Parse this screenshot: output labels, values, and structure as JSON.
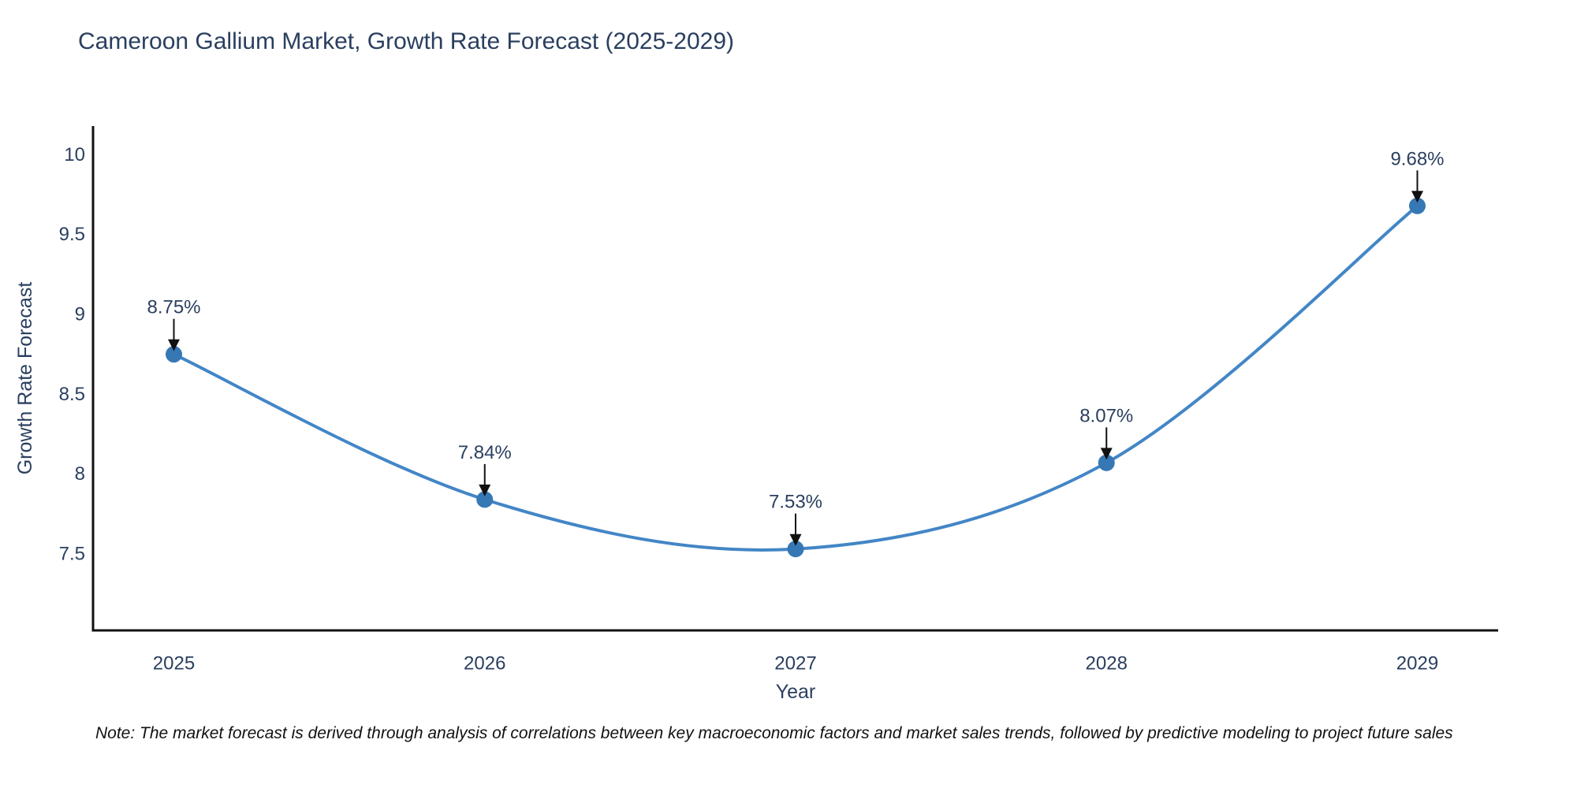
{
  "page": {
    "note": "Note: The market forecast is derived through analysis of correlations between key macroeconomic factors and market sales trends, followed by predictive modeling to project future sales"
  },
  "colors": {
    "background": "#ffffff",
    "title_text": "#2a3f5f",
    "tick_text": "#2a3f5f",
    "axis_line": "#111111",
    "series_line": "#4386c6",
    "marker_fill": "#3678b4",
    "annotation_text": "#2a3f5f",
    "annotation_arrow": "#111111",
    "note_text": "#111111"
  },
  "chart_data": {
    "type": "line",
    "title": "Cameroon Gallium Market, Growth Rate Forecast (2025-2029)",
    "xlabel": "Year",
    "ylabel": "Growth Rate Forecast",
    "x": [
      2025,
      2026,
      2027,
      2028,
      2029
    ],
    "y": [
      8.75,
      7.84,
      7.53,
      8.07,
      9.68
    ],
    "point_labels": [
      "8.75%",
      "7.84%",
      "7.53%",
      "8.07%",
      "9.68%"
    ],
    "xticks": [
      2025,
      2026,
      2027,
      2028,
      2029
    ],
    "xtick_labels": [
      "2025",
      "2026",
      "2027",
      "2028",
      "2029"
    ],
    "yticks": [
      7.5,
      8,
      8.5,
      9,
      9.5,
      10
    ],
    "ytick_labels": [
      "7.5",
      "8",
      "8.5",
      "9",
      "9.5",
      "10"
    ],
    "xlim": [
      2024.74,
      2029.26
    ],
    "ylim": [
      7.02,
      10.18
    ],
    "grid": false,
    "legend": false,
    "line_shape": "spline",
    "markers": true,
    "annotations": "value labels with down arrows above each point"
  }
}
